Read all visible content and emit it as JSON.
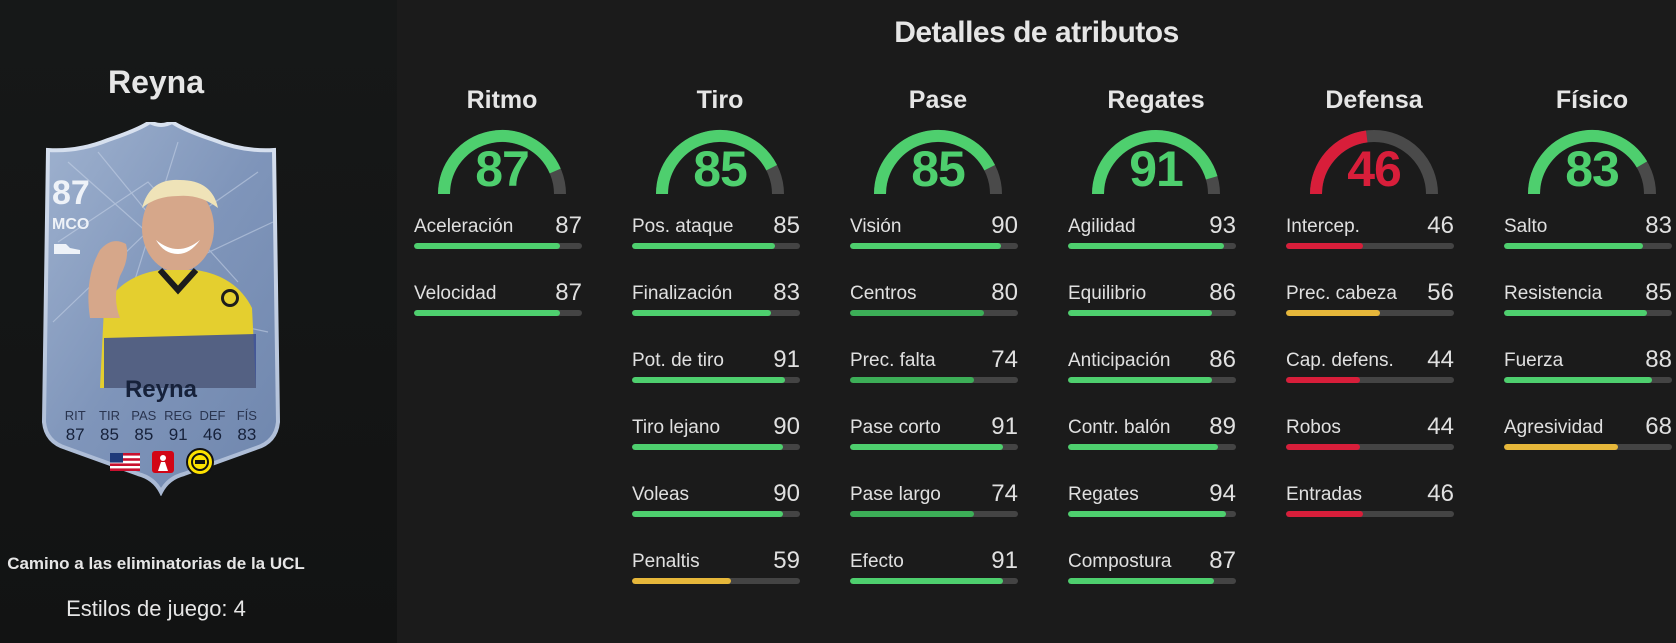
{
  "player": {
    "heading": "Reyna",
    "card": {
      "rating": "87",
      "position": "MCO",
      "name": "Reyna",
      "stats": [
        {
          "label": "RIT",
          "value": "87"
        },
        {
          "label": "TIR",
          "value": "85"
        },
        {
          "label": "PAS",
          "value": "85"
        },
        {
          "label": "REG",
          "value": "91"
        },
        {
          "label": "DEF",
          "value": "46"
        },
        {
          "label": "FÍS",
          "value": "83"
        }
      ],
      "badges": [
        "usa-flag-icon",
        "bundesliga-logo-icon",
        "bvb-club-badge-icon"
      ]
    },
    "promo": "Camino a las eliminatorias de la UCL",
    "playstyles": "Estilos de juego: 4"
  },
  "title": "Detalles de atributos",
  "colors": {
    "green": "#4ecf6e",
    "red": "#d81e3a",
    "yellow": "#e6b73a",
    "track": "#444444",
    "dark_green": "#2f9c4a"
  },
  "categories": [
    {
      "name": "Ritmo",
      "value": 87,
      "color": "#4ecf6e",
      "attributes": [
        {
          "name": "Aceleración",
          "value": 87,
          "color": "#4ecf6e"
        },
        {
          "name": "Velocidad",
          "value": 87,
          "color": "#4ecf6e"
        }
      ]
    },
    {
      "name": "Tiro",
      "value": 85,
      "color": "#4ecf6e",
      "attributes": [
        {
          "name": "Pos. ataque",
          "value": 85,
          "color": "#4ecf6e"
        },
        {
          "name": "Finalización",
          "value": 83,
          "color": "#4ecf6e"
        },
        {
          "name": "Pot. de tiro",
          "value": 91,
          "color": "#4ecf6e"
        },
        {
          "name": "Tiro lejano",
          "value": 90,
          "color": "#4ecf6e"
        },
        {
          "name": "Voleas",
          "value": 90,
          "color": "#4ecf6e"
        },
        {
          "name": "Penaltis",
          "value": 59,
          "color": "#e6b73a"
        }
      ]
    },
    {
      "name": "Pase",
      "value": 85,
      "color": "#4ecf6e",
      "attributes": [
        {
          "name": "Visión",
          "value": 90,
          "color": "#4ecf6e"
        },
        {
          "name": "Centros",
          "value": 80,
          "color": "#3cae57"
        },
        {
          "name": "Prec. falta",
          "value": 74,
          "color": "#3cae57"
        },
        {
          "name": "Pase corto",
          "value": 91,
          "color": "#4ecf6e"
        },
        {
          "name": "Pase largo",
          "value": 74,
          "color": "#3cae57"
        },
        {
          "name": "Efecto",
          "value": 91,
          "color": "#4ecf6e"
        }
      ]
    },
    {
      "name": "Regates",
      "value": 91,
      "color": "#4ecf6e",
      "attributes": [
        {
          "name": "Agilidad",
          "value": 93,
          "color": "#4ecf6e"
        },
        {
          "name": "Equilibrio",
          "value": 86,
          "color": "#4ecf6e"
        },
        {
          "name": "Anticipación",
          "value": 86,
          "color": "#4ecf6e"
        },
        {
          "name": "Contr. balón",
          "value": 89,
          "color": "#4ecf6e"
        },
        {
          "name": "Regates",
          "value": 94,
          "color": "#4ecf6e"
        },
        {
          "name": "Compostura",
          "value": 87,
          "color": "#4ecf6e"
        }
      ]
    },
    {
      "name": "Defensa",
      "value": 46,
      "color": "#d81e3a",
      "attributes": [
        {
          "name": "Intercep.",
          "value": 46,
          "color": "#d81e3a"
        },
        {
          "name": "Prec. cabeza",
          "value": 56,
          "color": "#e6b73a"
        },
        {
          "name": "Cap. defens.",
          "value": 44,
          "color": "#d81e3a"
        },
        {
          "name": "Robos",
          "value": 44,
          "color": "#d81e3a"
        },
        {
          "name": "Entradas",
          "value": 46,
          "color": "#d81e3a"
        }
      ]
    },
    {
      "name": "Físico",
      "value": 83,
      "color": "#4ecf6e",
      "attributes": [
        {
          "name": "Salto",
          "value": 83,
          "color": "#4ecf6e"
        },
        {
          "name": "Resistencia",
          "value": 85,
          "color": "#4ecf6e"
        },
        {
          "name": "Fuerza",
          "value": 88,
          "color": "#4ecf6e"
        },
        {
          "name": "Agresividad",
          "value": 68,
          "color": "#e6b73a"
        }
      ]
    }
  ]
}
